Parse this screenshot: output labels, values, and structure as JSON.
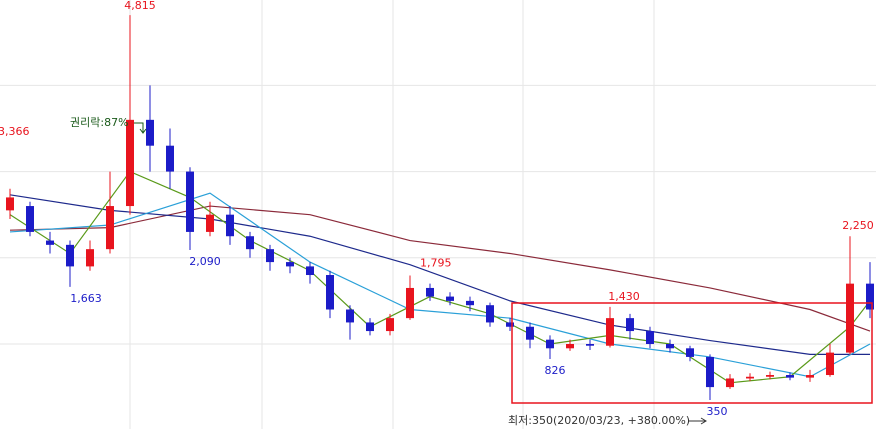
{
  "chart_data": {
    "type": "candlestick",
    "ylim": [
      14,
      4990
    ],
    "ygrid": [
      1000,
      2000,
      3000,
      4000
    ],
    "up_color": "#e8141e",
    "down_color": "#1c1cc8",
    "open": [
      2550,
      2600,
      2200,
      2150,
      1900,
      2100,
      2600,
      3600,
      3300,
      3000,
      2300,
      2500,
      2250,
      2100,
      1950,
      1900,
      1800,
      1400,
      1250,
      1150,
      1300,
      1650,
      1550,
      1500,
      1450,
      1250,
      1200,
      1050,
      950,
      1000,
      980,
      1300,
      1150,
      1000,
      950,
      850,
      500,
      600,
      620,
      640,
      610,
      640,
      900,
      1700
    ],
    "high": [
      2800,
      2650,
      2300,
      2200,
      2200,
      3000,
      4815,
      4000,
      3500,
      3050,
      2650,
      2600,
      2300,
      2150,
      2000,
      1950,
      1850,
      1450,
      1300,
      1350,
      1795,
      1700,
      1600,
      1550,
      1480,
      1300,
      1250,
      1100,
      1050,
      1050,
      1430,
      1350,
      1200,
      1050,
      980,
      880,
      650,
      660,
      680,
      670,
      700,
      1000,
      2250,
      1950
    ],
    "low": [
      2450,
      2250,
      2050,
      1663,
      1850,
      2050,
      2500,
      3000,
      2800,
      2090,
      2250,
      2150,
      2000,
      1850,
      1820,
      1700,
      1300,
      1050,
      1100,
      1100,
      1280,
      1500,
      1450,
      1380,
      1200,
      1150,
      950,
      826,
      920,
      930,
      960,
      1050,
      950,
      900,
      800,
      350,
      480,
      570,
      590,
      580,
      560,
      620,
      880,
      1300
    ],
    "close": [
      2700,
      2300,
      2150,
      1900,
      2100,
      2600,
      3600,
      3300,
      3000,
      2300,
      2500,
      2250,
      2100,
      1950,
      1900,
      1800,
      1400,
      1250,
      1150,
      1300,
      1650,
      1550,
      1500,
      1450,
      1250,
      1200,
      1050,
      950,
      1000,
      980,
      1300,
      1150,
      1000,
      950,
      850,
      500,
      600,
      620,
      640,
      610,
      640,
      900,
      1700,
      1400
    ],
    "moving_averages": [
      {
        "color": "#8b2a3a",
        "x": [
          0,
          5,
          10,
          15,
          20,
          25,
          30,
          35,
          40,
          43
        ],
        "values": [
          2320,
          2350,
          2600,
          2500,
          2200,
          2050,
          1860,
          1650,
          1400,
          1150
        ]
      },
      {
        "color": "#1e2a8c",
        "x": [
          0,
          5,
          10,
          15,
          20,
          25,
          30,
          35,
          40,
          43
        ],
        "values": [
          2730,
          2550,
          2450,
          2250,
          1920,
          1500,
          1220,
          1040,
          880,
          880
        ]
      },
      {
        "color": "#2aa0d8",
        "x": [
          0,
          5,
          10,
          15,
          20,
          25,
          30,
          35,
          40,
          43
        ],
        "values": [
          2300,
          2380,
          2750,
          1950,
          1400,
          1300,
          1000,
          850,
          620,
          1000
        ]
      },
      {
        "color": "#5a9a1a",
        "x": [
          0,
          3,
          6,
          9,
          12,
          15,
          18,
          21,
          24,
          27,
          30,
          33,
          36,
          39,
          42,
          43
        ],
        "values": [
          2500,
          2050,
          3000,
          2700,
          2200,
          1850,
          1200,
          1550,
          1350,
          1000,
          1100,
          1000,
          550,
          620,
          1200,
          1500
        ]
      }
    ],
    "annotations": [
      {
        "value": 4815,
        "label": "4,815",
        "color": "#e8141e"
      },
      {
        "value": 3366,
        "label": "3,366",
        "color": "#e8141e"
      },
      {
        "value": 1663,
        "label": "1,663",
        "color": "#1c1cc8"
      },
      {
        "value": 2090,
        "label": "2,090",
        "color": "#1c1cc8"
      },
      {
        "value": 1795,
        "label": "1,795",
        "color": "#e8141e"
      },
      {
        "value": 1430,
        "label": "1,430",
        "color": "#e8141e"
      },
      {
        "value": 826,
        "label": "826",
        "color": "#1c1cc8"
      },
      {
        "value": 350,
        "label": "350",
        "color": "#1c1cc8"
      },
      {
        "value": 2250,
        "label": "2,250",
        "color": "#e8141e"
      }
    ],
    "ex_rights_note": "권리락:87%",
    "low_note": "최저:350(2020/03/23, +380.00%)"
  }
}
